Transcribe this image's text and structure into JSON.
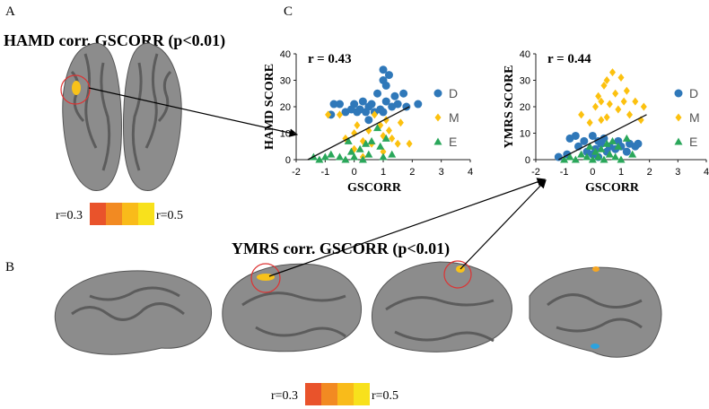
{
  "panel_labels": {
    "a": "A",
    "b": "B",
    "c": "C"
  },
  "titles": {
    "hamd": "HAMD corr. GSCORR (p<0.01)",
    "ymrs": "YMRS corr. GSCORR (p<0.01)"
  },
  "colorbars": [
    {
      "min_label": "r=0.3",
      "max_label": "r=0.5",
      "colors": [
        "#e9532b",
        "#f28a22",
        "#f9bb1a",
        "#f8e11c"
      ]
    },
    {
      "min_label": "r=0.3",
      "max_label": "r=0.5",
      "colors": [
        "#e9532b",
        "#f28a22",
        "#f9bb1a",
        "#f8e11c"
      ]
    }
  ],
  "chart_data": [
    {
      "type": "scatter",
      "annotation": "r = 0.43",
      "x_label": "GSCORR",
      "y_label": "HAMD SCORE",
      "xlim": [
        -2,
        4
      ],
      "ylim": [
        0,
        40
      ],
      "xticks": [
        -2,
        -1,
        0,
        1,
        2,
        3,
        4
      ],
      "yticks": [
        0,
        10,
        20,
        30,
        40
      ],
      "trend_line": {
        "x": [
          -1.6,
          1.9
        ],
        "y": [
          0,
          20
        ]
      },
      "series": [
        {
          "name": "D",
          "color": "#2f78b9",
          "marker": "circle",
          "x": [
            -0.8,
            -0.7,
            -0.5,
            -0.3,
            -0.1,
            0,
            0.1,
            0.2,
            0.3,
            0.4,
            0.5,
            0.6,
            0.7,
            0.8,
            0.9,
            1,
            1,
            1.1,
            1.1,
            1.2,
            1.3,
            1.4,
            1.5,
            1.7,
            1.8,
            2.2,
            0.5,
            1
          ],
          "values": [
            17,
            21,
            21,
            18,
            19,
            21,
            18,
            19,
            22,
            18,
            20,
            21,
            18,
            25,
            19,
            30,
            34,
            22,
            28,
            32,
            20,
            24,
            21,
            25,
            20,
            21,
            15,
            18
          ]
        },
        {
          "name": "M",
          "color": "#fcc10f",
          "marker": "diamond",
          "x": [
            -0.9,
            -0.5,
            -0.3,
            0,
            0.1,
            0.3,
            0.5,
            0.6,
            0.7,
            0.9,
            1,
            1.1,
            1.2,
            1.3,
            1.5,
            1.6,
            1.9,
            0.3,
            0,
            1
          ],
          "values": [
            17,
            17,
            8,
            10,
            13,
            7,
            11,
            6,
            17,
            13,
            9,
            15,
            11,
            8,
            6,
            14,
            6,
            1,
            4,
            3
          ]
        },
        {
          "name": "E",
          "color": "#2aa75a",
          "marker": "triangle",
          "x": [
            -1.4,
            -1.2,
            -1,
            -0.8,
            -0.5,
            -0.3,
            -0.1,
            0,
            0.2,
            0.3,
            0.5,
            0.6,
            0.8,
            0.9,
            1,
            1.1,
            1.3,
            0.4,
            -0.2
          ],
          "values": [
            1,
            0,
            1,
            2,
            1,
            0,
            3,
            1,
            4,
            0,
            2,
            7,
            12,
            5,
            1,
            8,
            2,
            6,
            7
          ]
        }
      ]
    },
    {
      "type": "scatter",
      "annotation": "r = 0.44",
      "x_label": "GSCORR",
      "y_label": "YMRS SCORE",
      "xlim": [
        -2,
        4
      ],
      "ylim": [
        0,
        40
      ],
      "xticks": [
        -2,
        -1,
        0,
        1,
        2,
        3,
        4
      ],
      "yticks": [
        0,
        10,
        20,
        30,
        40
      ],
      "trend_line": {
        "x": [
          -1.2,
          1.9
        ],
        "y": [
          0,
          17
        ]
      },
      "series": [
        {
          "name": "D",
          "color": "#2f78b9",
          "marker": "circle",
          "x": [
            -1.2,
            -0.9,
            -0.8,
            -0.6,
            -0.5,
            -0.3,
            -0.2,
            0,
            0,
            0.1,
            0.2,
            0.3,
            0.4,
            0.5,
            0.6,
            0.8,
            0.9,
            1,
            1.2,
            1.3,
            1.5,
            1.6,
            0.2
          ],
          "values": [
            1,
            2,
            8,
            9,
            5,
            7,
            3,
            9,
            2,
            4,
            7,
            6,
            8,
            3,
            5,
            4,
            7,
            5,
            3,
            6,
            5,
            6,
            1
          ]
        },
        {
          "name": "M",
          "color": "#fcc10f",
          "marker": "diamond",
          "x": [
            -0.4,
            -0.1,
            0.1,
            0.2,
            0.3,
            0.4,
            0.5,
            0.5,
            0.6,
            0.7,
            0.8,
            0.9,
            1,
            1.1,
            1.2,
            1.3,
            1.5,
            1.7,
            1.8,
            0.3
          ],
          "values": [
            17,
            14,
            20,
            24,
            22,
            28,
            16,
            30,
            21,
            33,
            25,
            19,
            31,
            22,
            26,
            17,
            22,
            15,
            20,
            15
          ]
        },
        {
          "name": "E",
          "color": "#2aa75a",
          "marker": "triangle",
          "x": [
            -1,
            -0.8,
            -0.6,
            -0.4,
            -0.2,
            0,
            0.1,
            0.2,
            0.4,
            0.5,
            0.6,
            0.7,
            0.8,
            0.9,
            1,
            1.2,
            1.4,
            -0.1,
            0.3
          ],
          "values": [
            0,
            1,
            0,
            2,
            1,
            0,
            3,
            1,
            0,
            6,
            2,
            7,
            1,
            5,
            0,
            8,
            2,
            5,
            4
          ]
        }
      ]
    }
  ]
}
